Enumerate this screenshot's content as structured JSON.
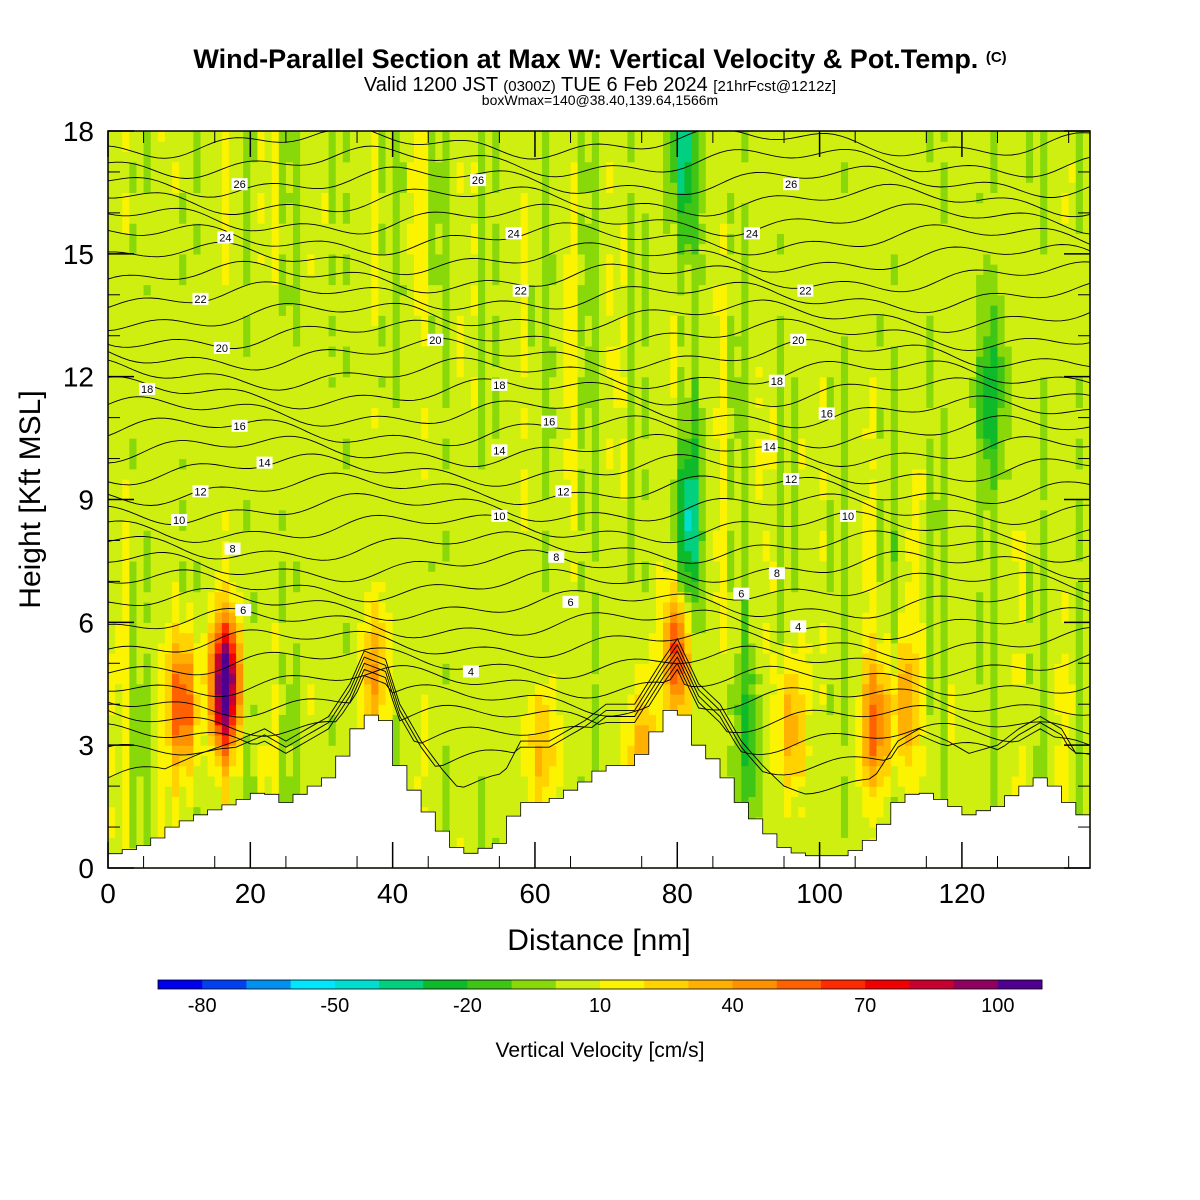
{
  "header": {
    "title": "Wind-Parallel Section at Max W: Vertical Velocity & Pot.Temp.",
    "title_mark": "(C)",
    "valid_prefix": "Valid 1200 JST",
    "valid_utc": "(0300Z)",
    "valid_date": "TUE 6 Feb 2024",
    "forecast": "[21hrFcst@1212z]",
    "box_info": "boxWmax=140@38.40,139.64,1566m"
  },
  "chart_data": {
    "type": "heatmap",
    "xlabel": "Distance [nm]",
    "ylabel": "Height [Kft MSL]",
    "xlim": [
      0,
      138
    ],
    "ylim": [
      0,
      18
    ],
    "x_ticks": [
      "0",
      "20",
      "40",
      "60",
      "80",
      "100",
      "120"
    ],
    "y_ticks": [
      "0",
      "3",
      "6",
      "9",
      "12",
      "15",
      "18"
    ],
    "colorbar": {
      "title": "Vertical Velocity [cm/s]",
      "tick_labels": [
        "-80",
        "-50",
        "-20",
        "10",
        "40",
        "70",
        "100"
      ],
      "colors": [
        "#0000ee",
        "#0040f0",
        "#0090f0",
        "#00e6ff",
        "#00dfcf",
        "#00d080",
        "#0fba2a",
        "#3ec516",
        "#88d80a",
        "#cfef10",
        "#fbf300",
        "#ffd200",
        "#ffb000",
        "#ff9000",
        "#ff6000",
        "#ff2a00",
        "#f00000",
        "#c80030",
        "#900060",
        "#500090"
      ]
    },
    "terrain_kft": [
      [
        0,
        0.3
      ],
      [
        6,
        0.6
      ],
      [
        9,
        1.0
      ],
      [
        13,
        1.3
      ],
      [
        18,
        1.6
      ],
      [
        22,
        1.9
      ],
      [
        25,
        1.6
      ],
      [
        28,
        1.9
      ],
      [
        31,
        2.2
      ],
      [
        34,
        3.0
      ],
      [
        36,
        3.8
      ],
      [
        39,
        3.6
      ],
      [
        41,
        2.5
      ],
      [
        44,
        1.6
      ],
      [
        47,
        0.9
      ],
      [
        50,
        0.3
      ],
      [
        55,
        0.6
      ],
      [
        58,
        1.6
      ],
      [
        62,
        1.6
      ],
      [
        67,
        2.1
      ],
      [
        70,
        2.5
      ],
      [
        74,
        2.5
      ],
      [
        78,
        3.6
      ],
      [
        80,
        4.1
      ],
      [
        83,
        3.0
      ],
      [
        86,
        2.5
      ],
      [
        89,
        1.6
      ],
      [
        92,
        1.0
      ],
      [
        95,
        0.5
      ],
      [
        98,
        0.3
      ],
      [
        104,
        0.3
      ],
      [
        108,
        0.8
      ],
      [
        111,
        1.6
      ],
      [
        114,
        1.9
      ],
      [
        118,
        1.6
      ],
      [
        121,
        1.3
      ],
      [
        125,
        1.5
      ],
      [
        128,
        1.9
      ],
      [
        131,
        2.2
      ],
      [
        134,
        1.9
      ],
      [
        136,
        1.3
      ],
      [
        138,
        1.3
      ]
    ],
    "updraft_cores": [
      {
        "x": 10.5,
        "z": 4.0,
        "peak": 60
      },
      {
        "x": 16.5,
        "z": 4.5,
        "peak": 110
      },
      {
        "x": 80,
        "z": 5.3,
        "peak": 60
      },
      {
        "x": 108,
        "z": 3.5,
        "peak": 50
      },
      {
        "x": 112,
        "z": 4.0,
        "peak": 30
      },
      {
        "x": 75,
        "z": 2.7,
        "peak": 35
      },
      {
        "x": 96,
        "z": 3.5,
        "peak": 35
      },
      {
        "x": 37.5,
        "z": 4.8,
        "peak": 35
      },
      {
        "x": 61,
        "z": 2.8,
        "peak": 28
      }
    ],
    "downdraft_cores": [
      {
        "x": 81.5,
        "z": 8.3,
        "peak": -45
      },
      {
        "x": 81,
        "z": 17.5,
        "peak": -40
      },
      {
        "x": 124,
        "z": 11.5,
        "peak": -30
      },
      {
        "x": 90,
        "z": 3.2,
        "peak": -25
      }
    ],
    "theta_labels": [
      {
        "x": 18.5,
        "z": 16.7,
        "text": "26"
      },
      {
        "x": 52,
        "z": 16.8,
        "text": "26"
      },
      {
        "x": 96,
        "z": 16.7,
        "text": "26"
      },
      {
        "x": 16.5,
        "z": 15.4,
        "text": "24"
      },
      {
        "x": 57,
        "z": 15.5,
        "text": "24"
      },
      {
        "x": 90.5,
        "z": 15.5,
        "text": "24"
      },
      {
        "x": 13,
        "z": 13.9,
        "text": "22"
      },
      {
        "x": 58,
        "z": 14.1,
        "text": "22"
      },
      {
        "x": 98,
        "z": 14.1,
        "text": "22"
      },
      {
        "x": 16,
        "z": 12.7,
        "text": "20"
      },
      {
        "x": 46,
        "z": 12.9,
        "text": "20"
      },
      {
        "x": 97,
        "z": 12.9,
        "text": "20"
      },
      {
        "x": 5.5,
        "z": 11.7,
        "text": "18"
      },
      {
        "x": 55,
        "z": 11.8,
        "text": "18"
      },
      {
        "x": 94,
        "z": 11.9,
        "text": "18"
      },
      {
        "x": 18.5,
        "z": 10.8,
        "text": "16"
      },
      {
        "x": 62,
        "z": 10.9,
        "text": "16"
      },
      {
        "x": 101,
        "z": 11.1,
        "text": "16"
      },
      {
        "x": 22,
        "z": 9.9,
        "text": "14"
      },
      {
        "x": 55,
        "z": 10.2,
        "text": "14"
      },
      {
        "x": 93,
        "z": 10.3,
        "text": "14"
      },
      {
        "x": 13,
        "z": 9.2,
        "text": "12"
      },
      {
        "x": 64,
        "z": 9.2,
        "text": "12"
      },
      {
        "x": 96,
        "z": 9.5,
        "text": "12"
      },
      {
        "x": 10,
        "z": 8.5,
        "text": "10"
      },
      {
        "x": 55,
        "z": 8.6,
        "text": "10"
      },
      {
        "x": 104,
        "z": 8.6,
        "text": "10"
      },
      {
        "x": 17.5,
        "z": 7.8,
        "text": "8"
      },
      {
        "x": 63,
        "z": 7.6,
        "text": "8"
      },
      {
        "x": 94,
        "z": 7.2,
        "text": "8"
      },
      {
        "x": 19,
        "z": 6.3,
        "text": "6"
      },
      {
        "x": 65,
        "z": 6.5,
        "text": "6"
      },
      {
        "x": 89,
        "z": 6.7,
        "text": "6"
      },
      {
        "x": 51,
        "z": 4.8,
        "text": "4"
      },
      {
        "x": 97,
        "z": 5.9,
        "text": "4"
      }
    ]
  }
}
